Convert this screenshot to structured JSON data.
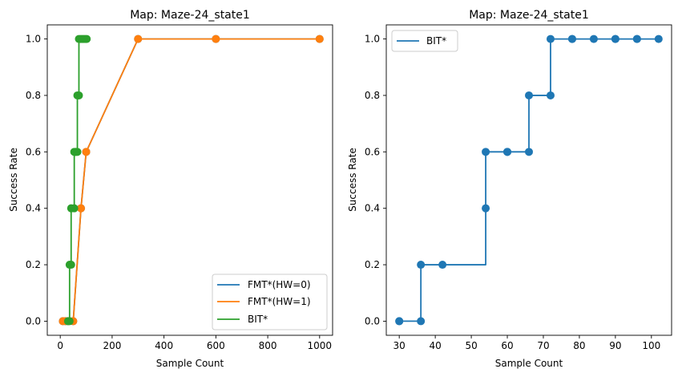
{
  "colors": {
    "blue": "#1f77b4",
    "orange": "#ff7f0e",
    "green": "#2ca02c"
  },
  "chart_data": [
    {
      "type": "line",
      "title": "Map: Maze-24_state1",
      "xlabel": "Sample Count",
      "ylabel": "Success Rate",
      "xlim": [
        -50,
        1050
      ],
      "ylim": [
        -0.05,
        1.05
      ],
      "xticks": [
        0,
        200,
        400,
        600,
        800,
        1000
      ],
      "xtick_labels": [
        "0",
        "200",
        "400",
        "600",
        "800",
        "1000"
      ],
      "yticks": [
        0,
        0.2,
        0.4,
        0.6,
        0.8,
        1.0
      ],
      "ytick_labels": [
        "0.0",
        "0.2",
        "0.4",
        "0.6",
        "0.8",
        "1.0"
      ],
      "grid": false,
      "legend_position": "lower-right",
      "series": [
        {
          "name": "FMT*(HW=0)",
          "color": "#1f77b4",
          "marker": "circle",
          "step": false,
          "x": [
            10,
            20,
            30,
            50,
            80,
            100,
            300,
            600,
            1000
          ],
          "y": [
            0.0,
            0.0,
            0.0,
            0.0,
            0.4,
            0.6,
            1.0,
            1.0,
            1.0
          ]
        },
        {
          "name": "FMT*(HW=1)",
          "color": "#ff7f0e",
          "marker": "circle",
          "step": false,
          "x": [
            10,
            20,
            30,
            50,
            80,
            100,
            300,
            600,
            1000
          ],
          "y": [
            0.0,
            0.0,
            0.0,
            0.0,
            0.4,
            0.6,
            1.0,
            1.0,
            1.0
          ]
        },
        {
          "name": "BIT*",
          "color": "#2ca02c",
          "marker": "circle",
          "step": true,
          "x": [
            30,
            36,
            36,
            42,
            42,
            54,
            54,
            60,
            60,
            66,
            66,
            72,
            72,
            78,
            84,
            90,
            96,
            102
          ],
          "y": [
            0.0,
            0.0,
            0.2,
            0.2,
            0.4,
            0.4,
            0.6,
            0.6,
            0.6,
            0.6,
            0.8,
            0.8,
            1.0,
            1.0,
            1.0,
            1.0,
            1.0,
            1.0
          ]
        }
      ]
    },
    {
      "type": "line",
      "title": "Map: Maze-24_state1",
      "xlabel": "Sample Count",
      "ylabel": "Success Rate",
      "xlim": [
        26.4,
        105.6
      ],
      "ylim": [
        -0.05,
        1.05
      ],
      "xticks": [
        30,
        40,
        50,
        60,
        70,
        80,
        90,
        100
      ],
      "xtick_labels": [
        "30",
        "40",
        "50",
        "60",
        "70",
        "80",
        "90",
        "100"
      ],
      "yticks": [
        0,
        0.2,
        0.4,
        0.6,
        0.8,
        1.0
      ],
      "ytick_labels": [
        "0.0",
        "0.2",
        "0.4",
        "0.6",
        "0.8",
        "1.0"
      ],
      "grid": false,
      "legend_position": "upper-left",
      "series": [
        {
          "name": "BIT*",
          "color": "#1f77b4",
          "marker": "circle",
          "step": true,
          "x": [
            30,
            30,
            36,
            36,
            42,
            54,
            54,
            60,
            60,
            66,
            66,
            72,
            72,
            78,
            78,
            84,
            90,
            90,
            96,
            96,
            102
          ],
          "y": [
            0.0,
            0.0,
            0.0,
            0.2,
            0.2,
            0.4,
            0.6,
            0.6,
            0.6,
            0.6,
            0.8,
            0.8,
            1.0,
            1.0,
            1.0,
            1.0,
            1.0,
            1.0,
            1.0,
            1.0,
            1.0
          ]
        }
      ]
    }
  ]
}
